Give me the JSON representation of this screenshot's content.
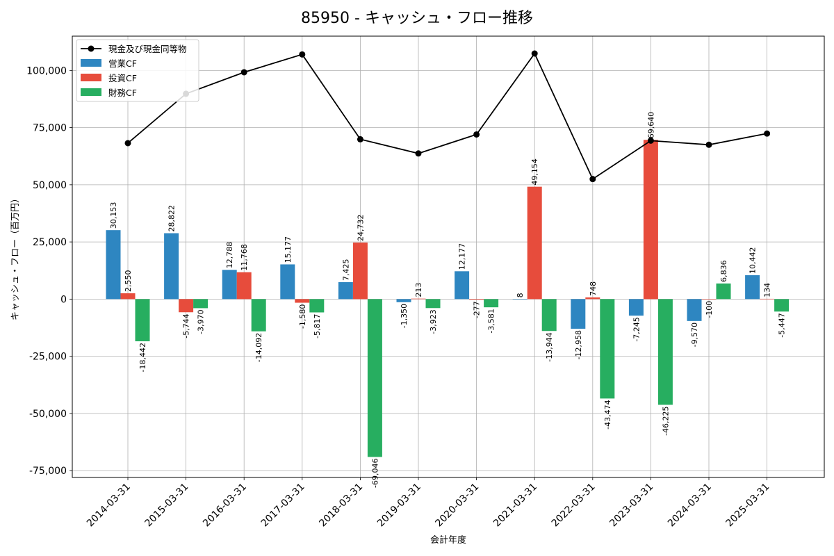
{
  "chart_data": {
    "type": "bar",
    "title": "85950 - キャッシュ・フロー推移",
    "xlabel": "会計年度",
    "ylabel": "キャッシュ・フロー（百万円）",
    "categories": [
      "2014-03-31",
      "2015-03-31",
      "2016-03-31",
      "2017-03-31",
      "2018-03-31",
      "2019-03-31",
      "2020-03-31",
      "2021-03-31",
      "2022-03-31",
      "2023-03-31",
      "2024-03-31",
      "2025-03-31"
    ],
    "ylim": [
      -78000,
      115000
    ],
    "yticks": [
      -75000,
      -50000,
      -25000,
      0,
      25000,
      50000,
      75000,
      100000
    ],
    "ytick_labels": [
      "-75,000",
      "-50,000",
      "-25,000",
      "0",
      "25,000",
      "50,000",
      "75,000",
      "100,000"
    ],
    "grid": true,
    "legend_position": "top-left",
    "series": [
      {
        "name": "営業CF",
        "kind": "bar",
        "color": "#2e86c1",
        "values": [
          30153,
          28822,
          12788,
          15177,
          7425,
          -1350,
          12177,
          8,
          -12958,
          -7245,
          -9570,
          10442
        ],
        "labels": [
          "30,153",
          "28,822",
          "12,788",
          "15,177",
          "7,425",
          "-1,350",
          "12,177",
          "8",
          "-12,958",
          "-7,245",
          "-9,570",
          "10,442"
        ]
      },
      {
        "name": "投資CF",
        "kind": "bar",
        "color": "#e74c3c",
        "values": [
          2550,
          -5744,
          11768,
          -1580,
          24732,
          213,
          -277,
          49154,
          748,
          69640,
          -100,
          134
        ],
        "labels": [
          "2,550",
          "-5,744",
          "11,768",
          "-1,580",
          "24,732",
          "213",
          "-277",
          "49,154",
          "748",
          "69,640",
          "-100",
          "134"
        ]
      },
      {
        "name": "財務CF",
        "kind": "bar",
        "color": "#27ae60",
        "values": [
          -18442,
          -3970,
          -14092,
          -5817,
          -69046,
          -3923,
          -3581,
          -13944,
          -43474,
          -46225,
          6836,
          -5447
        ],
        "labels": [
          "-18,442",
          "-3,970",
          "-14,092",
          "-5,817",
          "-69,046",
          "-3,923",
          "-3,581",
          "-13,944",
          "-43,474",
          "-46,225",
          "6,836",
          "-5,447"
        ]
      }
    ],
    "line": {
      "name": "現金及び現金同等物",
      "color": "#000000",
      "values": [
        68200,
        89800,
        99200,
        107000,
        69900,
        63700,
        72000,
        107400,
        52500,
        69300,
        67500,
        72400
      ]
    }
  }
}
